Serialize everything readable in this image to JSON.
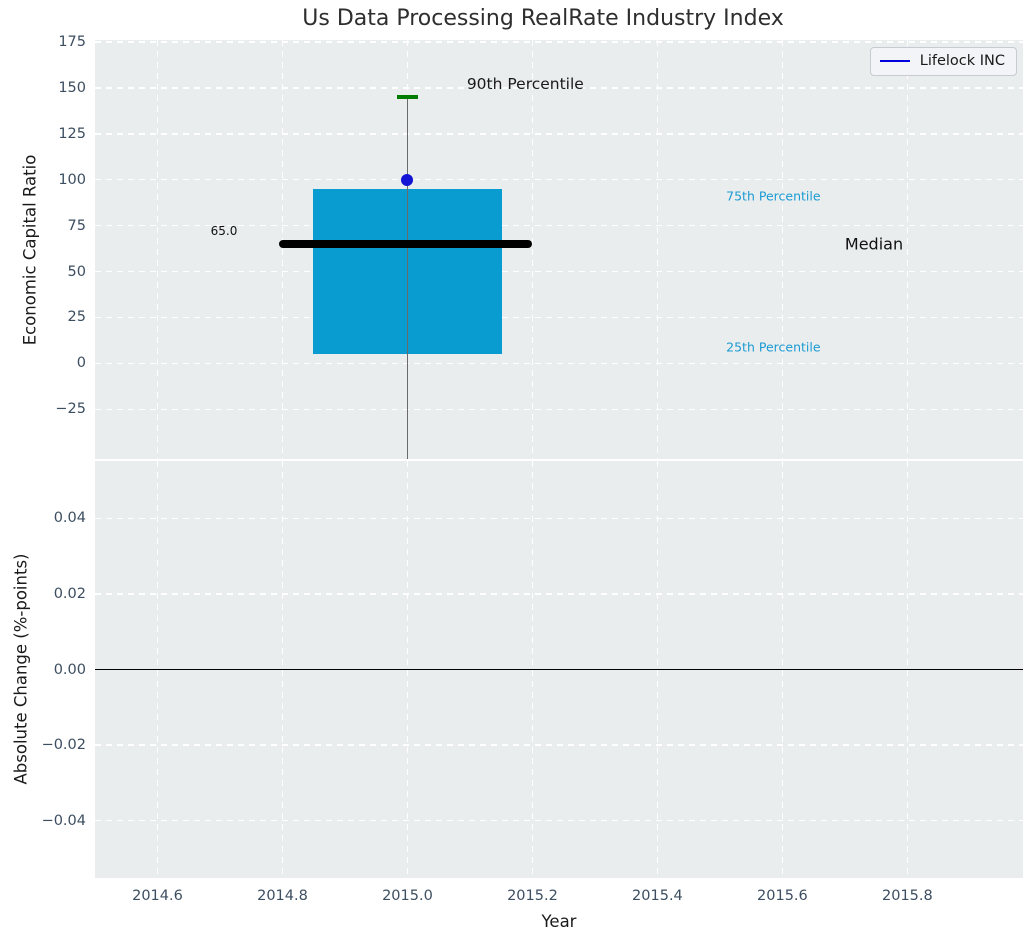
{
  "chart_data": [
    {
      "type": "boxplot",
      "title": "Us Data Processing RealRate Industry Index",
      "ylabel": "Economic Capital Ratio",
      "ylim": [
        -52,
        176
      ],
      "xlim": [
        2014.5,
        2015.985
      ],
      "grid": true,
      "yticks": [
        {
          "v": -25,
          "label": "−25"
        },
        {
          "v": 0,
          "label": "0"
        },
        {
          "v": 25,
          "label": "25"
        },
        {
          "v": 50,
          "label": "50"
        },
        {
          "v": 75,
          "label": "75"
        },
        {
          "v": 100,
          "label": "100"
        },
        {
          "v": 125,
          "label": "125"
        },
        {
          "v": 150,
          "label": "150"
        },
        {
          "v": 175,
          "label": "175"
        }
      ],
      "box": {
        "x": 2015.0,
        "half_width": 0.1505,
        "q1": 5.0,
        "median": 65.0,
        "q3": 95.0,
        "p90": 145.0,
        "p90_cap_half_width": 0.0175,
        "median_line_x": [
          2014.795,
          2015.2
        ],
        "whisker_clipped_at_bottom": true
      },
      "company_point": {
        "label": "Lifelock INC",
        "x": 2015.0,
        "y": 100.0
      },
      "legend": {
        "label": "Lifelock INC",
        "position": "upper right"
      },
      "annotations": [
        {
          "text": "90th Percentile",
          "x": 2015.095,
          "y": 152,
          "size": 15.5,
          "color": "#1a1a1a"
        },
        {
          "text": "65.0",
          "x": 2014.685,
          "y": 72,
          "size": 12,
          "color": "#111111"
        },
        {
          "text": "75th Percentile",
          "x": 2015.51,
          "y": 91,
          "size": 12.5,
          "color": "#1b9bd3"
        },
        {
          "text": "Median",
          "x": 2015.7,
          "y": 65,
          "size": 16,
          "color": "#111111"
        },
        {
          "text": "25th Percentile",
          "x": 2015.51,
          "y": 9,
          "size": 12.5,
          "color": "#1b9bd3"
        }
      ],
      "colors": {
        "plot_bg": "#e9edee",
        "grid": "#ffffff",
        "box_fill": "#089cd1",
        "median_line": "#000000",
        "whisker": "#6a6a6a",
        "p90_cap": "#007d00",
        "company_marker": "#1414d4",
        "legend_line": "#0000dd",
        "tick_label": "#3c4e60",
        "axis_label": "#1a1a1a",
        "title": "#2e2e2e"
      }
    },
    {
      "type": "line",
      "ylabel": "Absolute Change (%-points)",
      "xlabel": "Year",
      "ylim": [
        -0.0552,
        0.0552
      ],
      "zero_line": 0.0,
      "grid": true,
      "yticks": [
        {
          "v": -0.04,
          "label": "−0.04"
        },
        {
          "v": -0.02,
          "label": "−0.02"
        },
        {
          "v": 0.0,
          "label": "0.00"
        },
        {
          "v": 0.02,
          "label": "0.02"
        },
        {
          "v": 0.04,
          "label": "0.04"
        }
      ],
      "xticks": [
        {
          "v": 2014.6,
          "label": "2014.6"
        },
        {
          "v": 2014.8,
          "label": "2014.8"
        },
        {
          "v": 2015.0,
          "label": "2015.0"
        },
        {
          "v": 2015.2,
          "label": "2015.2"
        },
        {
          "v": 2015.4,
          "label": "2015.4"
        },
        {
          "v": 2015.6,
          "label": "2015.6"
        },
        {
          "v": 2015.8,
          "label": "2015.8"
        }
      ],
      "colors": {
        "zero_line": "#000000"
      }
    }
  ]
}
